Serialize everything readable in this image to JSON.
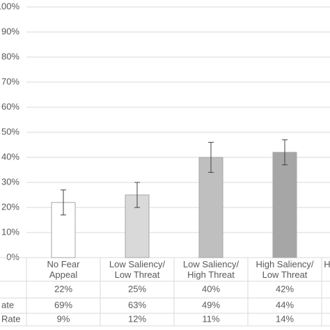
{
  "chart_data": {
    "type": "bar",
    "categories": [
      "No Fear|Appeal",
      "Low Saliency/|Low Threat",
      "Low Saliency/|High Threat",
      "High Saliency/|Low Threat",
      "H"
    ],
    "values": [
      22,
      25,
      40,
      42,
      null
    ],
    "errors": [
      5,
      5,
      6,
      5,
      null
    ],
    "colors": [
      "#ffffff",
      "#d9d9d9",
      "#bfbfbf",
      "#a6a6a6",
      "#ffffff"
    ],
    "ylim": [
      0,
      100
    ],
    "yticks": [
      {
        "value": 0,
        "label": "0%"
      },
      {
        "value": 10,
        "label": "10%"
      },
      {
        "value": 20,
        "label": "20%"
      },
      {
        "value": 30,
        "label": "30%"
      },
      {
        "value": 40,
        "label": "40%"
      },
      {
        "value": 50,
        "label": "50%"
      },
      {
        "value": 60,
        "label": "60%"
      },
      {
        "value": 70,
        "label": "70%"
      },
      {
        "value": 80,
        "label": "80%"
      },
      {
        "value": 90,
        "label": "90%"
      },
      {
        "value": 100,
        "label": "100%"
      }
    ],
    "grid": true,
    "table": [
      {
        "cells": [
          "22%",
          "25%",
          "40%",
          "42%"
        ]
      },
      {
        "label": "ate",
        "cells": [
          "69%",
          "63%",
          "49%",
          "44%"
        ]
      },
      {
        "label": "Rate",
        "cells": [
          "9%",
          "12%",
          "11%",
          "14%"
        ]
      }
    ]
  }
}
